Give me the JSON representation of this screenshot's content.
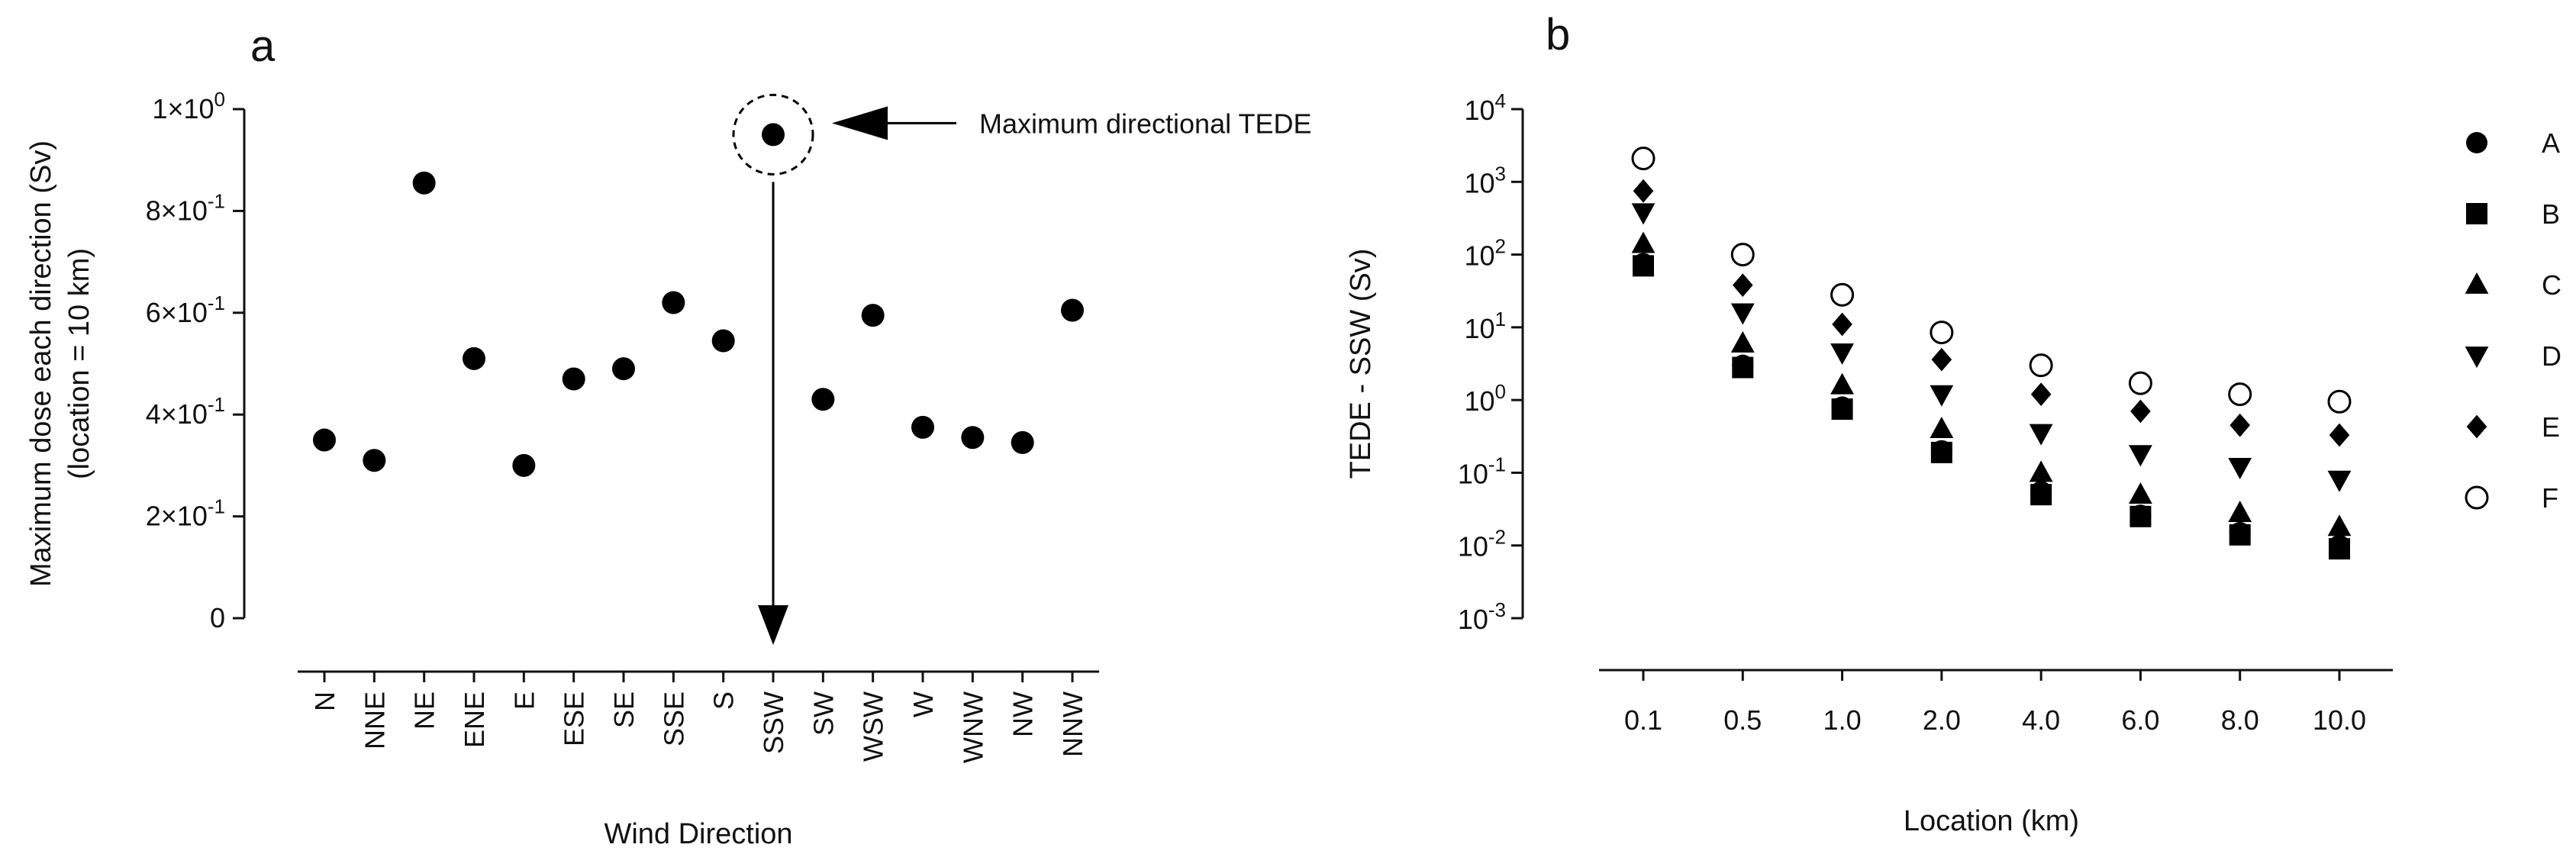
{
  "chart_data": [
    {
      "panel": "a",
      "type": "scatter",
      "title": "",
      "xlabel": "Wind Direction",
      "ylabel": "Maximum dose each direction (Sv)",
      "ylabel_sub": "(location = 10 km)",
      "ylim": [
        0,
        1.0
      ],
      "yticks": [
        {
          "value": 0,
          "label": "0"
        },
        {
          "value": 0.2,
          "label": "2×10",
          "exp": "-1"
        },
        {
          "value": 0.4,
          "label": "4×10",
          "exp": "-1"
        },
        {
          "value": 0.6,
          "label": "6×10",
          "exp": "-1"
        },
        {
          "value": 0.8,
          "label": "8×10",
          "exp": "-1"
        },
        {
          "value": 1.0,
          "label": "1×10",
          "exp": "0"
        }
      ],
      "categories": [
        "N",
        "NNE",
        "NE",
        "ENE",
        "E",
        "ESE",
        "SE",
        "SSE",
        "S",
        "SSW",
        "SW",
        "WSW",
        "W",
        "WNW",
        "NW",
        "NNW"
      ],
      "values": [
        0.35,
        0.31,
        0.855,
        0.51,
        0.3,
        0.47,
        0.49,
        0.62,
        0.545,
        0.95,
        0.43,
        0.595,
        0.375,
        0.355,
        0.345,
        0.605
      ],
      "annotation": {
        "text": "Maximum directional TEDE",
        "category": "SSW"
      }
    },
    {
      "panel": "b",
      "type": "scatter",
      "title": "",
      "xlabel": "Location (km)",
      "ylabel": "TEDE - SSW (Sv)",
      "yscale": "log",
      "ylim": [
        0.001,
        10000
      ],
      "yticks": [
        {
          "value": 0.001,
          "label": "10",
          "exp": "-3"
        },
        {
          "value": 0.01,
          "label": "10",
          "exp": "-2"
        },
        {
          "value": 0.1,
          "label": "10",
          "exp": "-1"
        },
        {
          "value": 1,
          "label": "10",
          "exp": "0"
        },
        {
          "value": 10,
          "label": "10",
          "exp": "1"
        },
        {
          "value": 100,
          "label": "10",
          "exp": "2"
        },
        {
          "value": 1000,
          "label": "10",
          "exp": "3"
        },
        {
          "value": 10000,
          "label": "10",
          "exp": "4"
        }
      ],
      "categories": [
        "0.1",
        "0.5",
        "1.0",
        "2.0",
        "4.0",
        "6.0",
        "8.0",
        "10.0"
      ],
      "legend_position": "right",
      "series": [
        {
          "name": "A",
          "marker": "circle-filled",
          "values": [
            75,
            3.0,
            0.8,
            0.2,
            0.055,
            0.026,
            0.015,
            0.01
          ]
        },
        {
          "name": "B",
          "marker": "square",
          "values": [
            70,
            2.8,
            0.75,
            0.19,
            0.05,
            0.025,
            0.014,
            0.009
          ]
        },
        {
          "name": "C",
          "marker": "triangle-up",
          "values": [
            140,
            6.0,
            1.6,
            0.4,
            0.1,
            0.05,
            0.028,
            0.018
          ]
        },
        {
          "name": "D",
          "marker": "triangle-down",
          "values": [
            380,
            16,
            4.5,
            1.2,
            0.35,
            0.18,
            0.12,
            0.08
          ]
        },
        {
          "name": "E",
          "marker": "diamond",
          "values": [
            750,
            38,
            11,
            3.6,
            1.2,
            0.7,
            0.45,
            0.33
          ]
        },
        {
          "name": "F",
          "marker": "circle-open",
          "values": [
            2100,
            100,
            28,
            8.5,
            3.0,
            1.7,
            1.2,
            0.95
          ]
        }
      ]
    }
  ],
  "panel_a_letter": "a",
  "panel_b_letter": "b"
}
